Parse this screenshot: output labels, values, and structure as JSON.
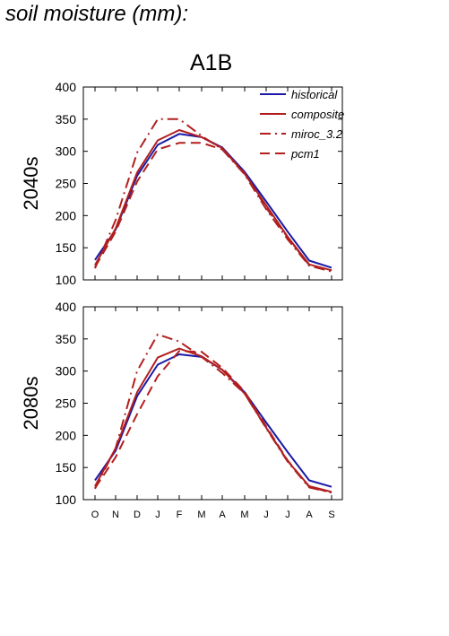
{
  "figure_title": "soil moisture (mm):",
  "scenario": "A1B",
  "months": [
    "O",
    "N",
    "D",
    "J",
    "F",
    "M",
    "A",
    "M",
    "J",
    "J",
    "A",
    "S"
  ],
  "colors": {
    "historical": "#1a1aa6",
    "model": "#b21f1f",
    "axis": "#000000"
  },
  "chart_data": [
    {
      "type": "line",
      "panel_label": "2040s",
      "ylim": [
        100,
        400
      ],
      "yticks": [
        100,
        150,
        200,
        250,
        300,
        350,
        400
      ],
      "categories": [
        "O",
        "N",
        "D",
        "J",
        "F",
        "M",
        "A",
        "M",
        "J",
        "J",
        "A",
        "S"
      ],
      "series": [
        {
          "name": "historical",
          "style": "solid",
          "color": "#1a1aa6",
          "values": [
            131,
            178,
            262,
            310,
            327,
            322,
            306,
            268,
            222,
            175,
            130,
            119
          ]
        },
        {
          "name": "composite",
          "style": "solid",
          "color": "#b21f1f",
          "values": [
            123,
            180,
            267,
            317,
            333,
            322,
            305,
            265,
            216,
            167,
            124,
            115
          ]
        },
        {
          "name": "miroc_3.2",
          "style": "dashdot",
          "color": "#b21f1f",
          "values": [
            118,
            193,
            298,
            350,
            350,
            324,
            303,
            264,
            210,
            163,
            122,
            113
          ]
        },
        {
          "name": "pcm1",
          "style": "dashed",
          "color": "#b21f1f",
          "values": [
            120,
            175,
            253,
            303,
            313,
            313,
            303,
            266,
            212,
            166,
            123,
            115
          ]
        }
      ]
    },
    {
      "type": "line",
      "panel_label": "2080s",
      "ylim": [
        100,
        400
      ],
      "yticks": [
        100,
        150,
        200,
        250,
        300,
        350,
        400
      ],
      "categories": [
        "O",
        "N",
        "D",
        "J",
        "F",
        "M",
        "A",
        "M",
        "J",
        "J",
        "A",
        "S"
      ],
      "series": [
        {
          "name": "historical",
          "style": "solid",
          "color": "#1a1aa6",
          "values": [
            130,
            176,
            261,
            310,
            326,
            322,
            302,
            267,
            220,
            174,
            130,
            120
          ]
        },
        {
          "name": "composite",
          "style": "solid",
          "color": "#b21f1f",
          "values": [
            121,
            180,
            267,
            321,
            335,
            323,
            302,
            265,
            212,
            160,
            121,
            112
          ]
        },
        {
          "name": "miroc_3.2",
          "style": "dashdot",
          "color": "#b21f1f",
          "values": [
            117,
            180,
            300,
            357,
            346,
            322,
            297,
            265,
            211,
            159,
            119,
            111
          ]
        },
        {
          "name": "pcm1",
          "style": "dashed",
          "color": "#b21f1f",
          "values": [
            118,
            166,
            233,
            292,
            331,
            330,
            305,
            268,
            214,
            161,
            120,
            111
          ]
        }
      ]
    }
  ]
}
